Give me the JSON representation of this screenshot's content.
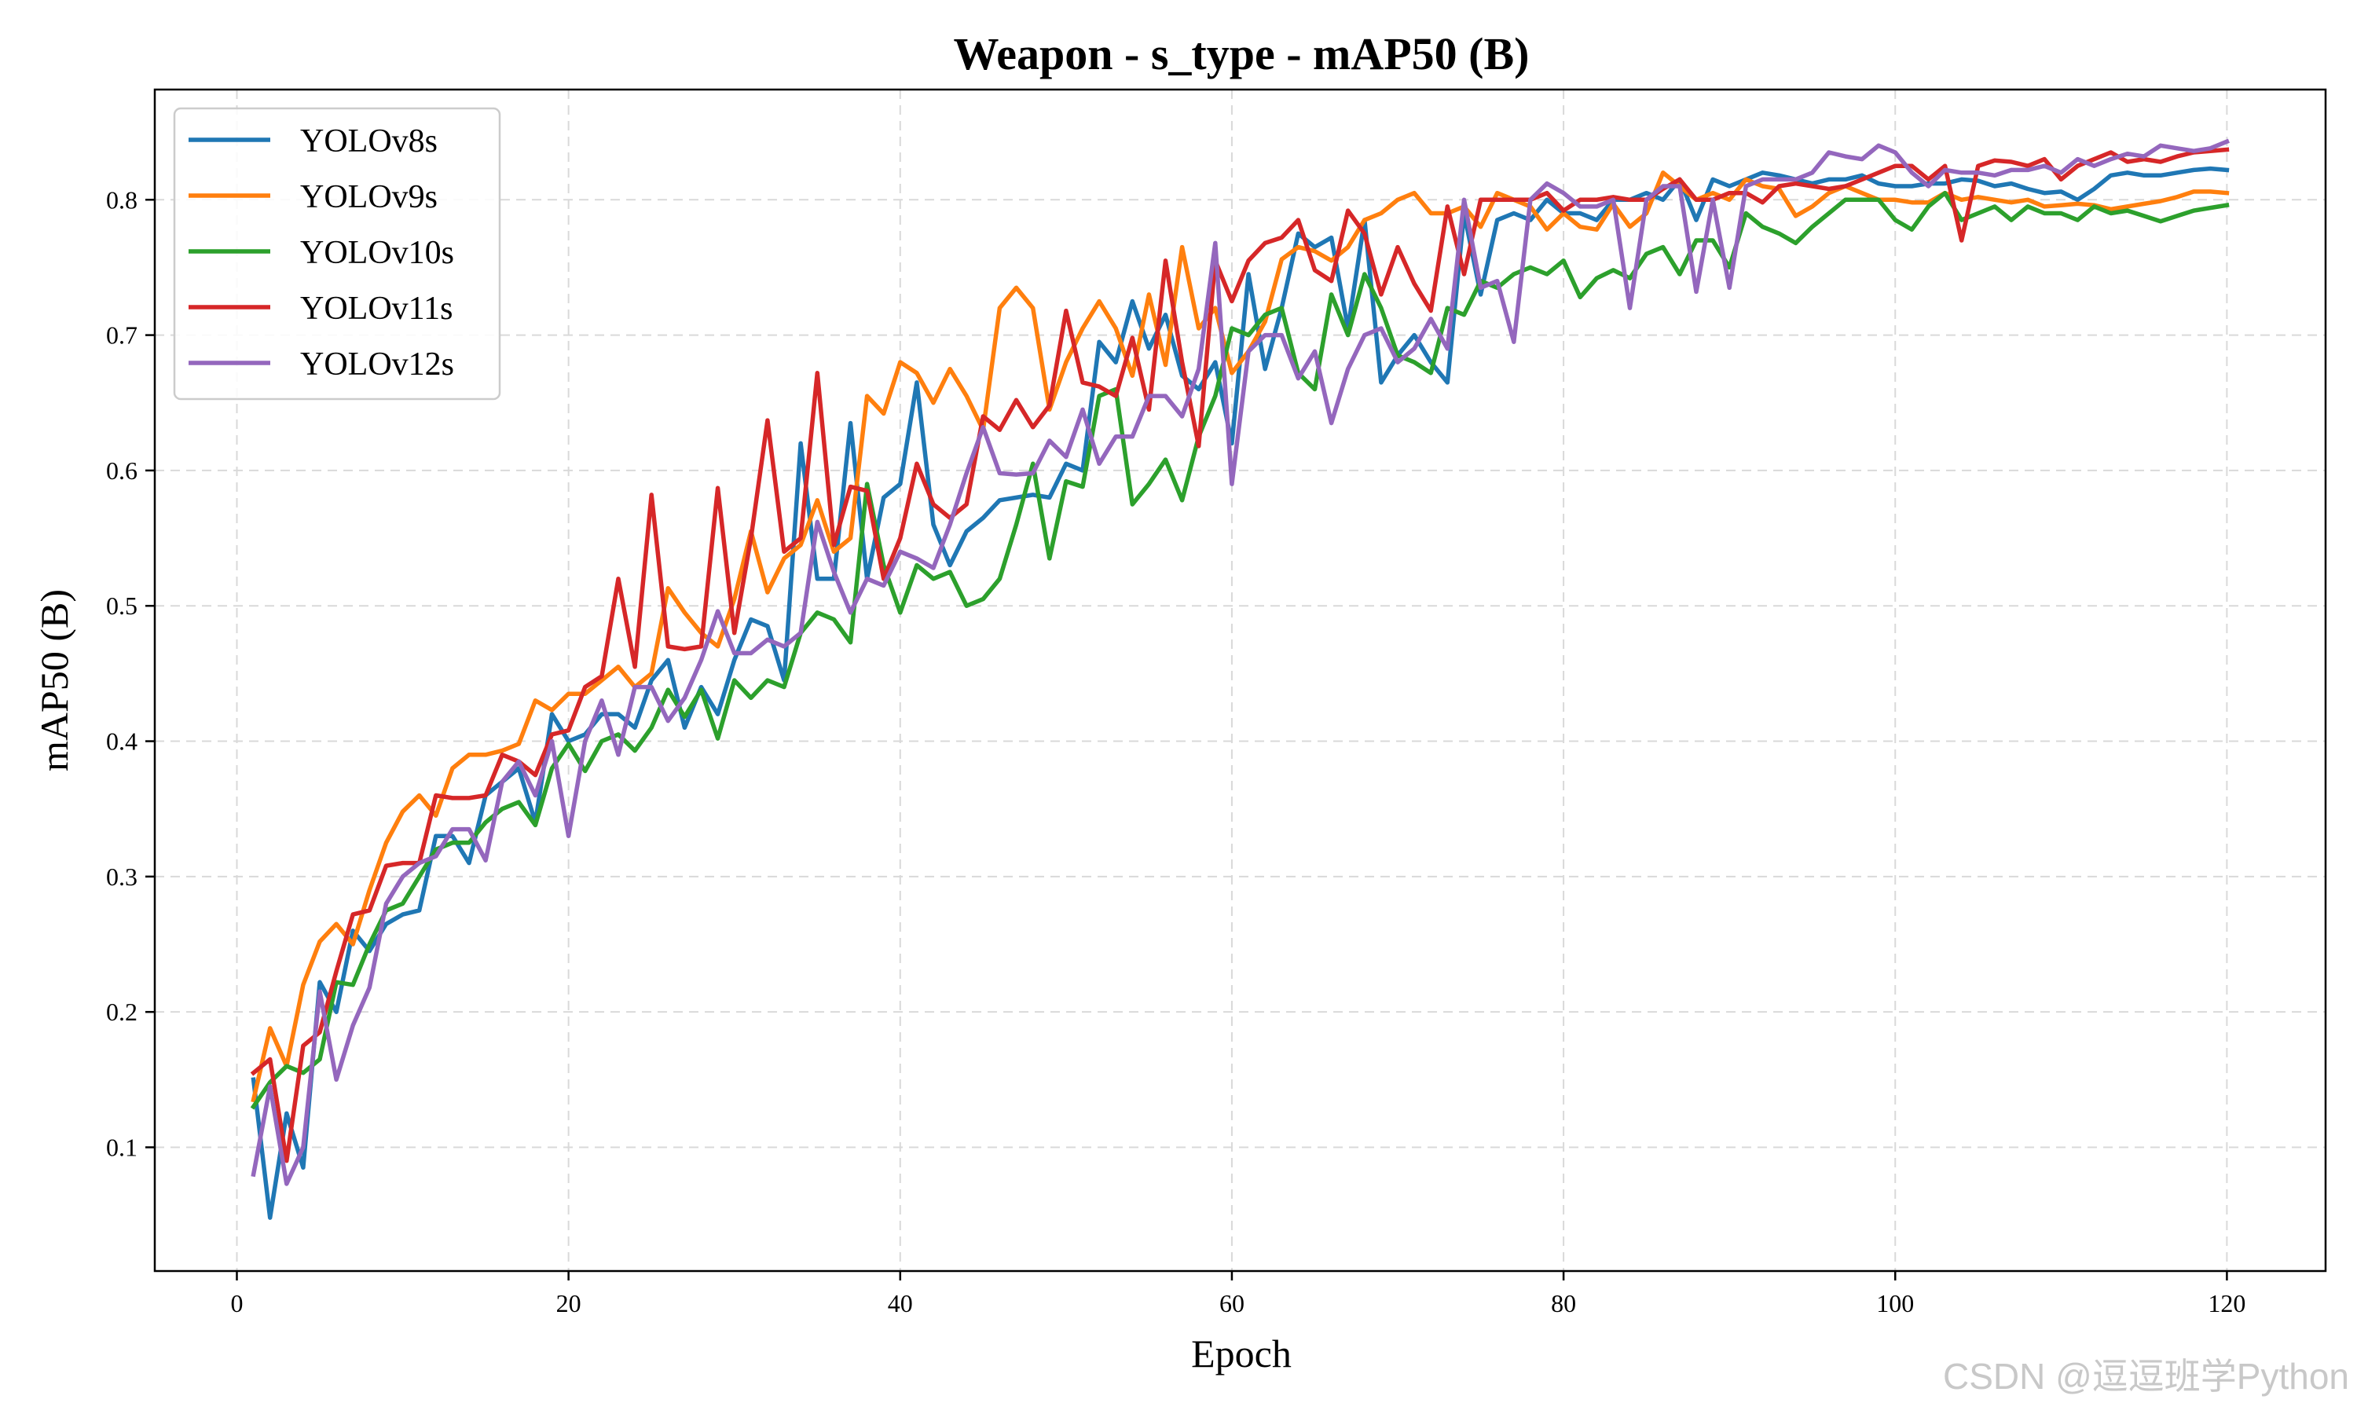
{
  "chart_data": {
    "type": "line",
    "title": "Weapon - s_type - mAP50 (B)",
    "xlabel": "Epoch",
    "ylabel": "mAP50 (B)",
    "xlim": [
      -4.95,
      125.95
    ],
    "ylim": [
      0.0086,
      0.8814
    ],
    "xticks": [
      0,
      20,
      40,
      60,
      80,
      100,
      120
    ],
    "yticks": [
      0.1,
      0.2,
      0.3,
      0.4,
      0.5,
      0.6,
      0.7,
      0.8
    ],
    "grid": true,
    "legend_position": "top-left",
    "x": [
      1,
      2,
      3,
      4,
      5,
      6,
      7,
      8,
      9,
      10,
      11,
      12,
      13,
      14,
      15,
      16,
      17,
      18,
      19,
      20,
      21,
      22,
      23,
      24,
      25,
      26,
      27,
      28,
      29,
      30,
      31,
      32,
      33,
      34,
      35,
      36,
      37,
      38,
      39,
      40,
      41,
      42,
      43,
      44,
      45,
      46,
      47,
      48,
      49,
      50,
      51,
      52,
      53,
      54,
      55,
      56,
      57,
      58,
      59,
      60,
      61,
      62,
      63,
      64,
      65,
      66,
      67,
      68,
      69,
      70,
      71,
      72,
      73,
      74,
      75,
      76,
      77,
      78,
      79,
      80,
      81,
      82,
      83,
      84,
      85,
      86,
      87,
      88,
      89,
      90,
      91,
      92,
      93,
      94,
      95,
      96,
      97,
      98,
      99,
      100,
      101,
      102,
      103,
      104,
      105,
      106,
      107,
      108,
      109,
      110,
      111,
      112,
      113,
      114,
      115,
      116,
      117,
      118,
      119,
      120
    ],
    "series": [
      {
        "name": "YOLOv8s",
        "color": "#1f77b4",
        "values": [
          0.15,
          0.048,
          0.125,
          0.085,
          0.222,
          0.2,
          0.26,
          0.245,
          0.265,
          0.272,
          0.275,
          0.33,
          0.33,
          0.31,
          0.36,
          0.37,
          0.38,
          0.34,
          0.42,
          0.4,
          0.405,
          0.42,
          0.42,
          0.41,
          0.445,
          0.46,
          0.41,
          0.44,
          0.42,
          0.46,
          0.49,
          0.485,
          0.445,
          0.62,
          0.52,
          0.52,
          0.635,
          0.52,
          0.58,
          0.59,
          0.665,
          0.56,
          0.53,
          0.555,
          0.565,
          0.578,
          0.58,
          0.582,
          0.58,
          0.605,
          0.6,
          0.695,
          0.68,
          0.725,
          0.69,
          0.715,
          0.67,
          0.66,
          0.68,
          0.62,
          0.745,
          0.675,
          0.72,
          0.775,
          0.765,
          0.772,
          0.705,
          0.785,
          0.665,
          0.685,
          0.7,
          0.68,
          0.665,
          0.79,
          0.73,
          0.785,
          0.79,
          0.785,
          0.8,
          0.79,
          0.79,
          0.785,
          0.8,
          0.8,
          0.805,
          0.8,
          0.815,
          0.785,
          0.815,
          0.81,
          0.815,
          0.82,
          0.818,
          0.815,
          0.812,
          0.815,
          0.815,
          0.818,
          0.812,
          0.81,
          0.81,
          0.812,
          0.812,
          0.815,
          0.814,
          0.81,
          0.812,
          0.808,
          0.805,
          0.806,
          0.8,
          0.808,
          0.818,
          0.82,
          0.818,
          0.818,
          0.82,
          0.822,
          0.823,
          0.822
        ]
      },
      {
        "name": "YOLOv9s",
        "color": "#ff7f0e",
        "values": [
          0.135,
          0.188,
          0.16,
          0.22,
          0.252,
          0.265,
          0.25,
          0.29,
          0.325,
          0.348,
          0.36,
          0.345,
          0.38,
          0.39,
          0.39,
          0.393,
          0.398,
          0.43,
          0.423,
          0.435,
          0.435,
          0.445,
          0.455,
          0.44,
          0.45,
          0.513,
          0.495,
          0.48,
          0.47,
          0.505,
          0.555,
          0.51,
          0.535,
          0.545,
          0.578,
          0.54,
          0.55,
          0.655,
          0.642,
          0.68,
          0.672,
          0.65,
          0.675,
          0.655,
          0.63,
          0.72,
          0.735,
          0.72,
          0.645,
          0.68,
          0.705,
          0.725,
          0.705,
          0.67,
          0.73,
          0.678,
          0.765,
          0.705,
          0.72,
          0.672,
          0.688,
          0.71,
          0.756,
          0.765,
          0.762,
          0.755,
          0.765,
          0.785,
          0.79,
          0.8,
          0.805,
          0.79,
          0.79,
          0.795,
          0.78,
          0.805,
          0.8,
          0.795,
          0.778,
          0.79,
          0.78,
          0.778,
          0.797,
          0.78,
          0.79,
          0.82,
          0.81,
          0.8,
          0.805,
          0.8,
          0.815,
          0.81,
          0.808,
          0.788,
          0.795,
          0.805,
          0.81,
          0.805,
          0.8,
          0.8,
          0.798,
          0.798,
          0.805,
          0.8,
          0.802,
          0.8,
          0.798,
          0.8,
          0.795,
          0.796,
          0.797,
          0.796,
          0.793,
          0.795,
          0.797,
          0.799,
          0.802,
          0.806,
          0.806,
          0.805
        ]
      },
      {
        "name": "YOLOv10s",
        "color": "#2ca02c",
        "values": [
          0.13,
          0.148,
          0.16,
          0.155,
          0.165,
          0.222,
          0.22,
          0.25,
          0.275,
          0.28,
          0.3,
          0.32,
          0.325,
          0.325,
          0.34,
          0.35,
          0.355,
          0.338,
          0.38,
          0.398,
          0.378,
          0.4,
          0.405,
          0.393,
          0.41,
          0.438,
          0.418,
          0.438,
          0.402,
          0.445,
          0.432,
          0.445,
          0.44,
          0.48,
          0.495,
          0.49,
          0.473,
          0.59,
          0.53,
          0.495,
          0.53,
          0.52,
          0.525,
          0.5,
          0.505,
          0.52,
          0.56,
          0.605,
          0.535,
          0.592,
          0.588,
          0.655,
          0.66,
          0.575,
          0.59,
          0.608,
          0.578,
          0.625,
          0.655,
          0.705,
          0.7,
          0.715,
          0.72,
          0.672,
          0.66,
          0.73,
          0.7,
          0.745,
          0.72,
          0.685,
          0.68,
          0.672,
          0.72,
          0.715,
          0.74,
          0.735,
          0.745,
          0.75,
          0.745,
          0.755,
          0.728,
          0.742,
          0.748,
          0.742,
          0.76,
          0.765,
          0.745,
          0.77,
          0.77,
          0.75,
          0.79,
          0.78,
          0.775,
          0.768,
          0.78,
          0.79,
          0.8,
          0.8,
          0.8,
          0.785,
          0.778,
          0.795,
          0.805,
          0.785,
          0.79,
          0.795,
          0.785,
          0.795,
          0.79,
          0.79,
          0.785,
          0.795,
          0.79,
          0.792,
          0.788,
          0.784,
          0.788,
          0.792,
          0.794,
          0.796
        ]
      },
      {
        "name": "YOLOv11s",
        "color": "#d62728",
        "values": [
          0.155,
          0.165,
          0.09,
          0.175,
          0.185,
          0.23,
          0.272,
          0.275,
          0.308,
          0.31,
          0.31,
          0.36,
          0.358,
          0.358,
          0.36,
          0.39,
          0.385,
          0.375,
          0.405,
          0.408,
          0.44,
          0.448,
          0.52,
          0.455,
          0.582,
          0.47,
          0.468,
          0.47,
          0.587,
          0.48,
          0.55,
          0.637,
          0.54,
          0.55,
          0.672,
          0.545,
          0.588,
          0.585,
          0.52,
          0.55,
          0.605,
          0.575,
          0.565,
          0.575,
          0.64,
          0.63,
          0.652,
          0.632,
          0.648,
          0.718,
          0.665,
          0.662,
          0.655,
          0.698,
          0.645,
          0.755,
          0.68,
          0.618,
          0.755,
          0.725,
          0.755,
          0.768,
          0.772,
          0.785,
          0.748,
          0.74,
          0.792,
          0.775,
          0.73,
          0.765,
          0.738,
          0.718,
          0.795,
          0.745,
          0.8,
          0.8,
          0.8,
          0.8,
          0.805,
          0.792,
          0.8,
          0.8,
          0.802,
          0.8,
          0.8,
          0.808,
          0.815,
          0.8,
          0.8,
          0.805,
          0.805,
          0.798,
          0.81,
          0.812,
          0.81,
          0.808,
          0.81,
          0.815,
          0.82,
          0.825,
          0.825,
          0.815,
          0.825,
          0.77,
          0.825,
          0.829,
          0.828,
          0.825,
          0.83,
          0.815,
          0.825,
          0.83,
          0.835,
          0.828,
          0.83,
          0.828,
          0.832,
          0.835,
          0.836,
          0.837
        ]
      },
      {
        "name": "YOLOv12s",
        "color": "#9467bd",
        "values": [
          0.08,
          0.145,
          0.073,
          0.1,
          0.215,
          0.15,
          0.19,
          0.218,
          0.28,
          0.3,
          0.31,
          0.315,
          0.335,
          0.335,
          0.312,
          0.37,
          0.385,
          0.36,
          0.4,
          0.33,
          0.4,
          0.43,
          0.39,
          0.44,
          0.44,
          0.415,
          0.432,
          0.46,
          0.496,
          0.465,
          0.465,
          0.475,
          0.47,
          0.48,
          0.562,
          0.525,
          0.495,
          0.52,
          0.515,
          0.54,
          0.535,
          0.528,
          0.56,
          0.598,
          0.632,
          0.598,
          0.597,
          0.598,
          0.622,
          0.61,
          0.645,
          0.605,
          0.625,
          0.625,
          0.655,
          0.655,
          0.64,
          0.675,
          0.768,
          0.59,
          0.688,
          0.7,
          0.7,
          0.668,
          0.688,
          0.635,
          0.675,
          0.7,
          0.705,
          0.68,
          0.69,
          0.712,
          0.69,
          0.8,
          0.735,
          0.74,
          0.695,
          0.8,
          0.812,
          0.805,
          0.795,
          0.795,
          0.8,
          0.72,
          0.8,
          0.81,
          0.81,
          0.732,
          0.8,
          0.735,
          0.81,
          0.815,
          0.815,
          0.815,
          0.82,
          0.835,
          0.832,
          0.83,
          0.84,
          0.835,
          0.82,
          0.81,
          0.822,
          0.82,
          0.82,
          0.818,
          0.822,
          0.822,
          0.825,
          0.82,
          0.83,
          0.825,
          0.83,
          0.834,
          0.832,
          0.84,
          0.838,
          0.836,
          0.838,
          0.843
        ]
      }
    ]
  },
  "watermark": "CSDN @逗逗班学Python"
}
